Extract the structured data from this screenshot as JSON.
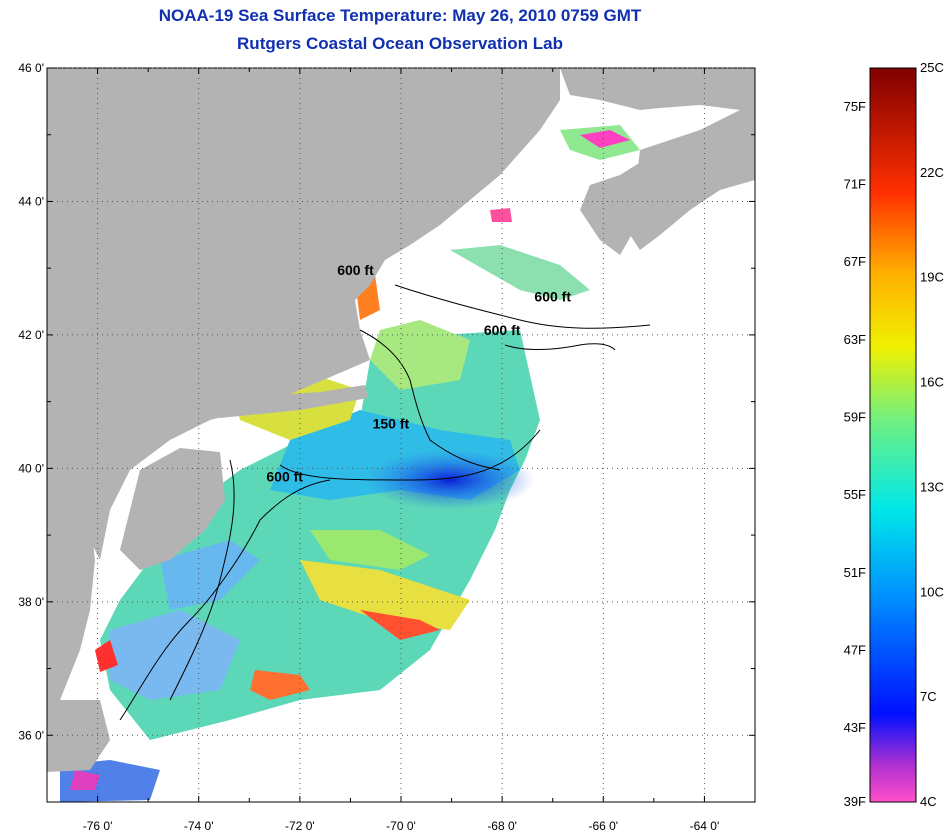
{
  "title": "NOAA-19 Sea Surface Temperature:  May 26, 2010 0759 GMT",
  "subtitle": "Rutgers Coastal Ocean Observation Lab",
  "colors": {
    "land": "#b3b3b3",
    "cloud": "#ffffff",
    "title": "#1030b0"
  },
  "map": {
    "lat_range": [
      35,
      46
    ],
    "lon_range": [
      -77,
      -63
    ],
    "lat_ticks": [
      36,
      38,
      40,
      42,
      44,
      46
    ],
    "lon_ticks": [
      -76,
      -74,
      -72,
      -70,
      -68,
      -66,
      -64
    ],
    "lat_labels": [
      "36 0'",
      "38 0'",
      "40 0'",
      "42 0'",
      "44 0'",
      "46 0'"
    ],
    "lon_labels": [
      "-76 0'",
      "-74 0'",
      "-72 0'",
      "-70 0'",
      "-68 0'",
      "-66 0'",
      "-64 0'"
    ],
    "grid": "dotted",
    "depth_contours": [
      {
        "label": "600 ft",
        "lon": -70.9,
        "lat": 42.9
      },
      {
        "label": "600 ft",
        "lon": -67.0,
        "lat": 42.5
      },
      {
        "label": "600 ft",
        "lon": -68.0,
        "lat": 42.0
      },
      {
        "label": "150 ft",
        "lon": -70.2,
        "lat": 40.6
      },
      {
        "label": "600 ft",
        "lon": -72.3,
        "lat": 39.8
      }
    ]
  },
  "colorbar": {
    "fahrenheit_labels": [
      "75F",
      "71F",
      "67F",
      "63F",
      "59F",
      "55F",
      "51F",
      "47F",
      "43F",
      "39F"
    ],
    "fahrenheit_values": [
      75,
      71,
      67,
      63,
      59,
      55,
      51,
      47,
      43,
      39
    ],
    "celsius_labels": [
      "25C",
      "22C",
      "19C",
      "16C",
      "13C",
      "10C",
      "7C",
      "4C"
    ],
    "celsius_values": [
      25,
      22,
      19,
      16,
      13,
      10,
      7,
      4
    ],
    "range_c": [
      4,
      25
    ]
  }
}
